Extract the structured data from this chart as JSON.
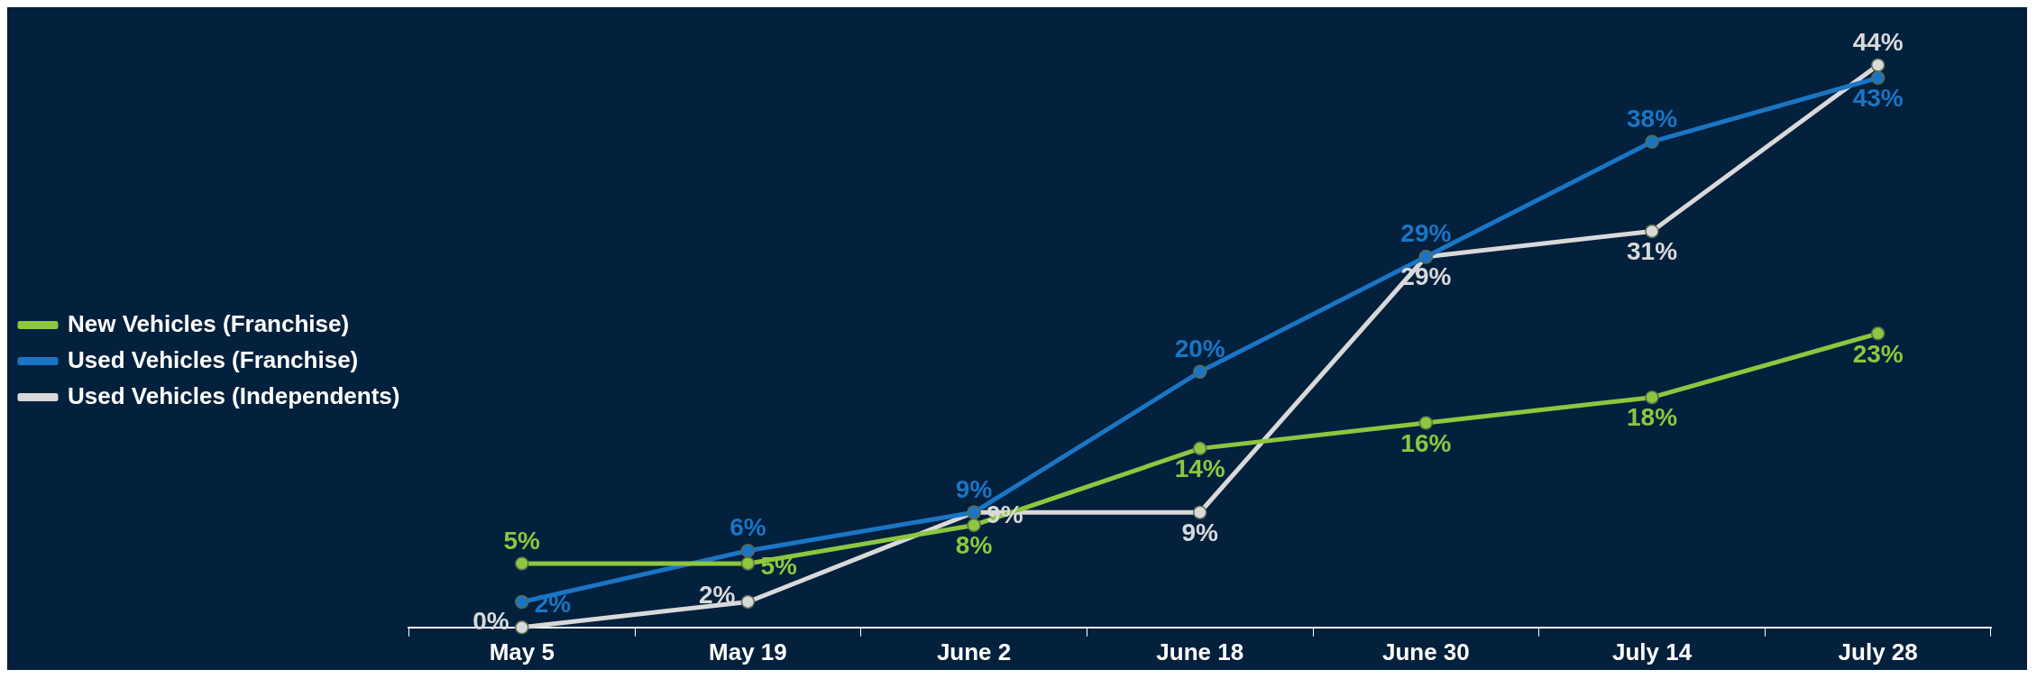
{
  "chart_data": {
    "type": "line",
    "categories": [
      "May 5",
      "May 19",
      "June 2",
      "June 18",
      "June 30",
      "July 14",
      "July 28"
    ],
    "series": [
      {
        "name": "New Vehicles (Franchise)",
        "color": "#8dc63f",
        "values": [
          5,
          5,
          8,
          14,
          16,
          18,
          23
        ],
        "value_labels": [
          "5%",
          "5%",
          "8%",
          "14%",
          "16%",
          "18%",
          "23%"
        ]
      },
      {
        "name": "Used Vehicles (Franchise)",
        "color": "#1a75c4",
        "values": [
          2,
          6,
          9,
          20,
          29,
          38,
          43
        ],
        "value_labels": [
          "2%",
          "6%",
          "9%",
          "20%",
          "29%",
          "38%",
          "43%"
        ]
      },
      {
        "name": "Used Vehicles (Independents)",
        "color": "#d9d9d9",
        "values": [
          0,
          2,
          9,
          9,
          29,
          31,
          44
        ],
        "value_labels": [
          "0%",
          "2%",
          "9%",
          "9%",
          "29%",
          "31%",
          "44%"
        ]
      }
    ],
    "legend": "left",
    "grid": false,
    "marker": "circle",
    "line_style": "solid"
  }
}
